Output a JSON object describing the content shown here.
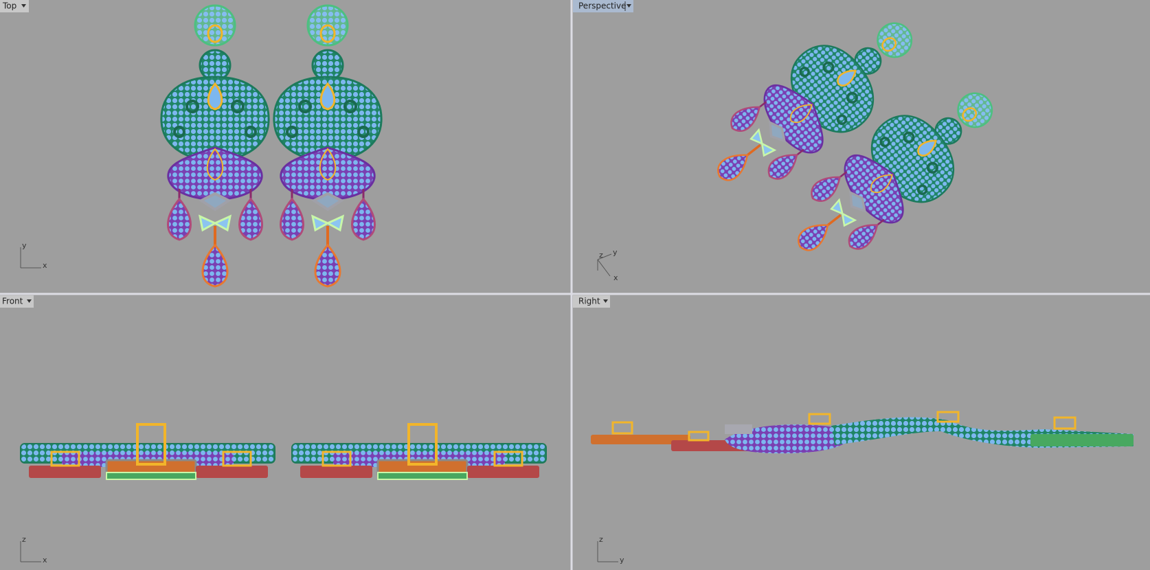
{
  "viewports": [
    {
      "label": "Top",
      "axes": [
        "y",
        "x"
      ]
    },
    {
      "label": "Perspective",
      "axes": [
        "z",
        "y",
        "x"
      ]
    },
    {
      "label": "Front",
      "axes": [
        "z",
        "x"
      ]
    },
    {
      "label": "Right",
      "axes": [
        "z",
        "y"
      ]
    }
  ]
}
